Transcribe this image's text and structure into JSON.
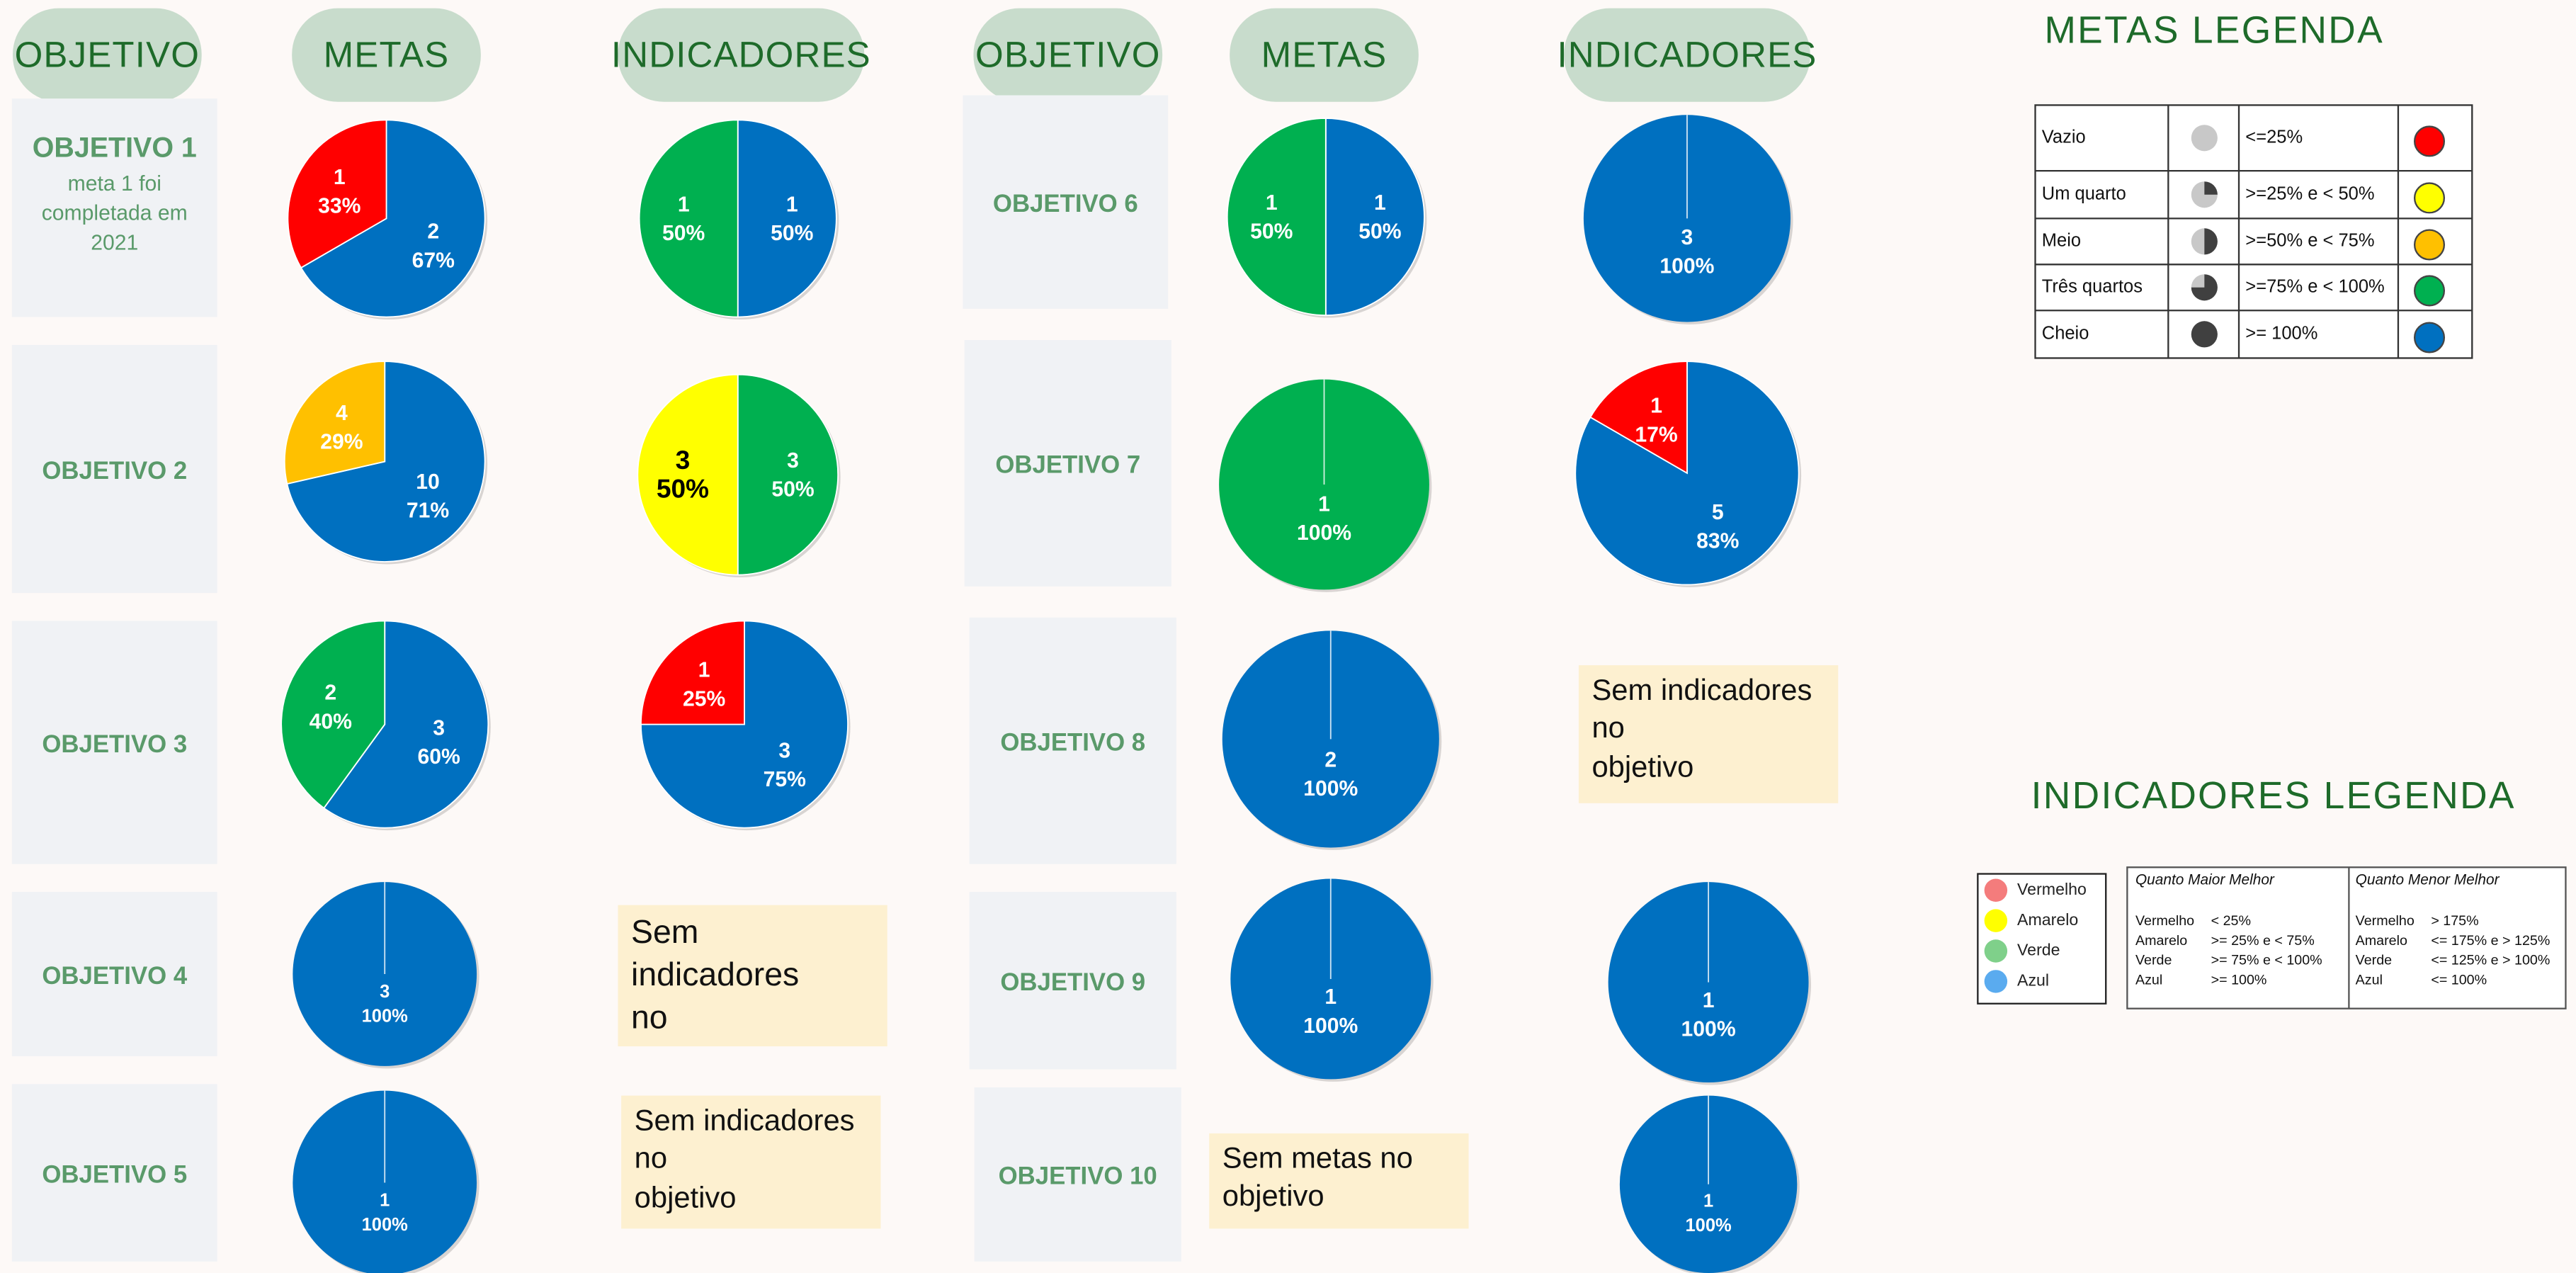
{
  "headers": [
    "OBJETIVO",
    "METAS",
    "INDICADORES",
    "OBJETIVO",
    "METAS",
    "INDICADORES"
  ],
  "objectives": [
    {
      "label": "OBJETIVO 1",
      "note": "meta 1 foi\ncompletada em\n2021",
      "metas": {
        "type": "pie",
        "values": [
          2,
          1
        ],
        "value_labels": [
          "67%",
          "33%"
        ],
        "colors": [
          "#0070c0",
          "#ff0000"
        ]
      },
      "indicadores": {
        "type": "pie",
        "values": [
          1,
          1
        ],
        "value_labels": [
          "50%",
          "50%"
        ],
        "colors": [
          "#0070c0",
          "#00b050"
        ]
      }
    },
    {
      "label": "OBJETIVO 2",
      "metas": {
        "type": "pie",
        "values": [
          10,
          4
        ],
        "value_labels": [
          "71%",
          "29%"
        ],
        "colors": [
          "#0070c0",
          "#ffc000"
        ]
      },
      "indicadores": {
        "type": "pie",
        "values": [
          3,
          3
        ],
        "value_labels": [
          "50%",
          "50%"
        ],
        "colors": [
          "#00b050",
          "#ffff00"
        ]
      }
    },
    {
      "label": "OBJETIVO 3",
      "metas": {
        "type": "pie",
        "values": [
          3,
          2
        ],
        "value_labels": [
          "60%",
          "40%"
        ],
        "colors": [
          "#0070c0",
          "#00b050"
        ]
      },
      "indicadores": {
        "type": "pie",
        "values": [
          3,
          1
        ],
        "value_labels": [
          "75%",
          "25%"
        ],
        "colors": [
          "#0070c0",
          "#ff0000"
        ]
      }
    },
    {
      "label": "OBJETIVO 4",
      "metas": {
        "type": "pie",
        "values": [
          3
        ],
        "value_labels": [
          "100%"
        ],
        "colors": [
          "#0070c0"
        ]
      },
      "indicadores": {
        "empty": "Sem indicadores\nno\nobjetivo"
      }
    },
    {
      "label": "OBJETIVO 5",
      "metas": {
        "type": "pie",
        "values": [
          1
        ],
        "value_labels": [
          "100%"
        ],
        "colors": [
          "#0070c0"
        ]
      },
      "indicadores": {
        "empty": "Sem indicadores\nno\nobjetivo"
      }
    },
    {
      "label": "OBJETIVO 6",
      "metas": {
        "type": "pie",
        "values": [
          1,
          1
        ],
        "value_labels": [
          "50%",
          "50%"
        ],
        "colors": [
          "#0070c0",
          "#00b050"
        ]
      },
      "indicadores": {
        "type": "pie",
        "values": [
          3
        ],
        "value_labels": [
          "100%"
        ],
        "colors": [
          "#0070c0"
        ]
      }
    },
    {
      "label": "OBJETIVO 7",
      "metas": {
        "type": "pie",
        "values": [
          1
        ],
        "value_labels": [
          "100%"
        ],
        "colors": [
          "#00b050"
        ]
      },
      "indicadores": {
        "type": "pie",
        "values": [
          5,
          1
        ],
        "value_labels": [
          "83%",
          "17%"
        ],
        "colors": [
          "#0070c0",
          "#ff0000"
        ]
      }
    },
    {
      "label": "OBJETIVO 8",
      "metas": {
        "type": "pie",
        "values": [
          2
        ],
        "value_labels": [
          "100%"
        ],
        "colors": [
          "#0070c0"
        ]
      },
      "indicadores": {
        "empty": "Sem indicadores\nno\nobjetivo"
      }
    },
    {
      "label": "OBJETIVO 9",
      "metas": {
        "type": "pie",
        "values": [
          1
        ],
        "value_labels": [
          "100%"
        ],
        "colors": [
          "#0070c0"
        ]
      },
      "indicadores": {
        "type": "pie",
        "values": [
          1
        ],
        "value_labels": [
          "100%"
        ],
        "colors": [
          "#0070c0"
        ]
      }
    },
    {
      "label": "OBJETIVO 10",
      "metas": {
        "empty": "Sem metas no\nobjetivo"
      },
      "indicadores": {
        "type": "pie",
        "values": [
          1
        ],
        "value_labels": [
          "100%"
        ],
        "colors": [
          "#0070c0"
        ]
      }
    }
  ],
  "metas_legenda": {
    "title": "METAS LEGENDA",
    "rows": [
      {
        "label": "Vazio",
        "range": "<=25%",
        "color": "#ff0000"
      },
      {
        "label": "Um quarto",
        "range": ">=25% e < 50%",
        "color": "#ffff00"
      },
      {
        "label": "Meio",
        "range": ">=50% e < 75%",
        "color": "#ffc000"
      },
      {
        "label": "Três quartos",
        "range": ">=75% e < 100%",
        "color": "#00b050"
      },
      {
        "label": "Cheio",
        "range": ">= 100%",
        "color": "#0070c0"
      }
    ]
  },
  "indicadores_legenda": {
    "title": "INDICADORES  LEGENDA",
    "colors": [
      {
        "name": "Vermelho",
        "color": "#f47c7c"
      },
      {
        "name": "Amarelo",
        "color": "#ffff00"
      },
      {
        "name": "Verde",
        "color": "#7fd08a"
      },
      {
        "name": "Azul",
        "color": "#5aabef"
      }
    ],
    "columns": [
      {
        "title": "Quanto Maior Melhor",
        "rows": [
          [
            "Vermelho",
            "< 25%"
          ],
          [
            "Amarelo",
            ">= 25% e < 75%"
          ],
          [
            "Verde",
            ">= 75% e < 100%"
          ],
          [
            "Azul",
            ">= 100%"
          ]
        ]
      },
      {
        "title": "Quanto Menor Melhor",
        "rows": [
          [
            "Vermelho",
            "> 175%"
          ],
          [
            "Amarelo",
            "<= 175% e > 125%"
          ],
          [
            "Verde",
            "<= 125% e > 100%"
          ],
          [
            "Azul",
            "<= 100%"
          ]
        ]
      }
    ]
  }
}
